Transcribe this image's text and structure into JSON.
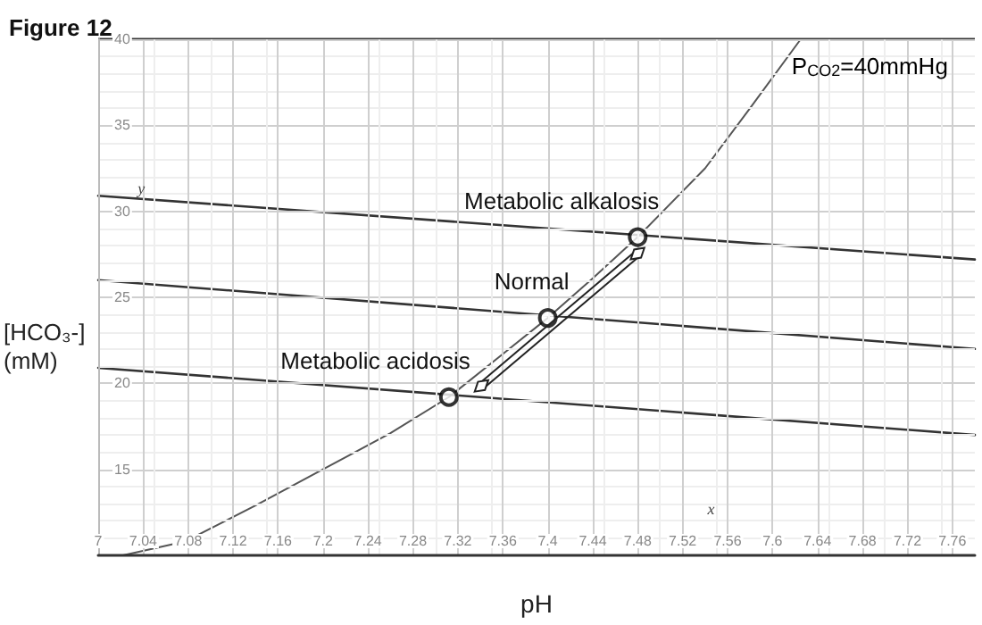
{
  "chart_data": {
    "type": "line",
    "title": "Figure 12",
    "xlabel": "pH",
    "ylabel": "[HCO₃-] (mM)",
    "xlim": [
      7,
      7.78
    ],
    "ylim": [
      10,
      40
    ],
    "xticks": [
      7,
      7.04,
      7.08,
      7.12,
      7.16,
      7.2,
      7.24,
      7.28,
      7.32,
      7.36,
      7.4,
      7.44,
      7.48,
      7.52,
      7.56,
      7.6,
      7.64,
      7.68,
      7.72,
      7.76
    ],
    "yticks": [
      15,
      20,
      25,
      30,
      35,
      40
    ],
    "grid": true,
    "legend": false,
    "series": [
      {
        "name": "P$_{CO2}$=40mmHg",
        "color": "#555555",
        "marker": "none",
        "x": [
          7.022,
          7.077,
          7.14,
          7.2,
          7.26,
          7.312,
          7.36,
          7.4,
          7.44,
          7.48,
          7.54,
          7.58,
          7.625
        ],
        "values": [
          10,
          10.8,
          12.9,
          15,
          17.1,
          19.2,
          21.7,
          23.8,
          26.1,
          28.5,
          32.5,
          36,
          40
        ]
      },
      {
        "color": "#333333",
        "marker": "none",
        "x": [
          7,
          7.78
        ],
        "values": [
          30.9,
          27.2
        ]
      },
      {
        "color": "#333333",
        "marker": "none",
        "x": [
          7,
          7.78
        ],
        "values": [
          26,
          22
        ]
      },
      {
        "color": "#333333",
        "marker": "none",
        "x": [
          7,
          7.78
        ],
        "values": [
          20.9,
          17
        ]
      },
      {
        "type": "scatter",
        "color": "#000000",
        "marker": "circle",
        "x": [
          7.312,
          7.4,
          7.48
        ],
        "values": [
          19.2,
          23.8,
          28.5
        ]
      }
    ],
    "annotations": [
      {
        "text": "Metabolic acidosis",
        "x": 7.312,
        "y": 19.2
      },
      {
        "text": "Normal",
        "x": 7.4,
        "y": 23.8
      },
      {
        "text": "Metabolic alkalosis",
        "x": 7.48,
        "y": 28.5
      },
      "y",
      "x"
    ]
  }
}
